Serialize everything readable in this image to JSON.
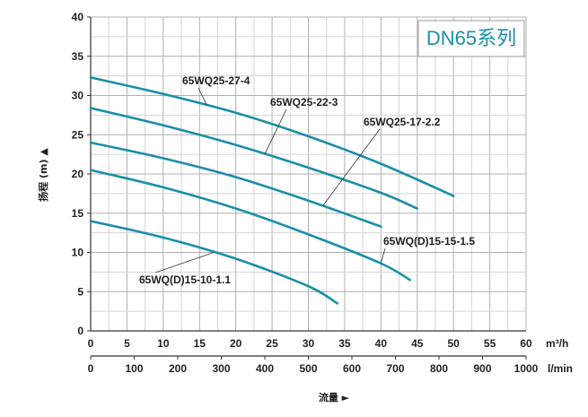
{
  "chart_data": {
    "type": "line",
    "title": "DN65系列",
    "ylabel": "扬程 (m) ▲",
    "xlabel": "流量 ►",
    "x_unit": "m³/h",
    "x2_unit": "l/min",
    "xlim": [
      0,
      60
    ],
    "ylim": [
      0,
      40
    ],
    "x_ticks": [
      "0",
      "5",
      "10",
      "15",
      "20",
      "25",
      "30",
      "35",
      "40",
      "45",
      "50",
      "55",
      "60"
    ],
    "x2_ticks": [
      "0",
      "100",
      "200",
      "300",
      "400",
      "500",
      "600",
      "700",
      "800",
      "900",
      "1000"
    ],
    "y_ticks": [
      "0",
      "5",
      "10",
      "15",
      "20",
      "25",
      "30",
      "35",
      "40"
    ],
    "grid": true,
    "line_color": "#1a8fa8",
    "series": [
      {
        "name": "65WQ25-27-4",
        "x": [
          0,
          10,
          20,
          30,
          40,
          50
        ],
        "y": [
          32.3,
          30.2,
          27.8,
          24.8,
          21.3,
          17.2
        ]
      },
      {
        "name": "65WQ25-22-3",
        "x": [
          0,
          10,
          20,
          30,
          40,
          45
        ],
        "y": [
          28.4,
          26.2,
          23.7,
          20.8,
          17.6,
          15.6
        ]
      },
      {
        "name": "65WQ25-17-2.2",
        "x": [
          0,
          10,
          20,
          30,
          40
        ],
        "y": [
          24.0,
          22.0,
          19.6,
          16.6,
          13.3
        ]
      },
      {
        "name": "65WQ(D)15-15-1.5",
        "x": [
          0,
          10,
          20,
          30,
          40,
          44
        ],
        "y": [
          20.5,
          18.3,
          15.6,
          12.3,
          8.6,
          6.5
        ]
      },
      {
        "name": "65WQ(D)15-10-1.1",
        "x": [
          0,
          10,
          20,
          30,
          34
        ],
        "y": [
          14.0,
          11.9,
          9.2,
          5.7,
          3.5
        ]
      }
    ]
  }
}
